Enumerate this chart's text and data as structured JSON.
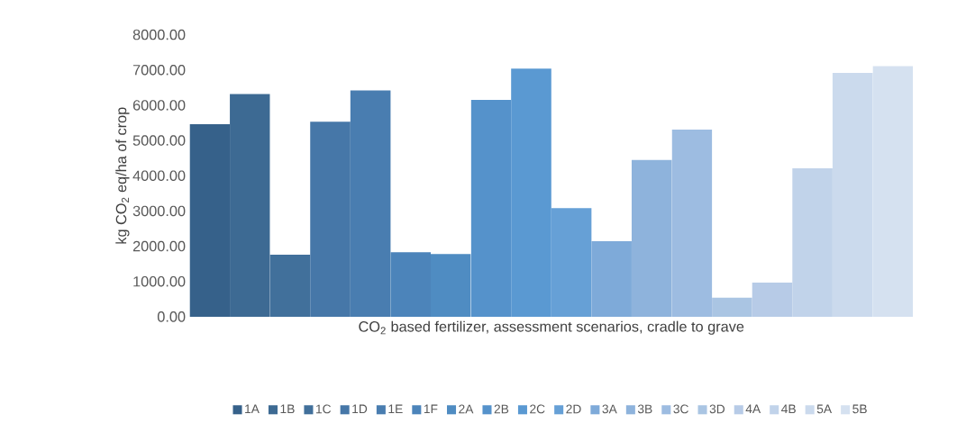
{
  "chart_data": {
    "type": "bar",
    "xlabel": "CO$_{2}$ based fertilizer, assessment scenarios, cradle to grave",
    "ylabel": "kg CO$_{2}$ eq/ha of crop",
    "categories": [
      null
    ],
    "series": [
      {
        "name": "1A",
        "color": "#36618a",
        "values": [
          5460
        ]
      },
      {
        "name": "1B",
        "color": "#3d6a93",
        "values": [
          6320
        ]
      },
      {
        "name": "1C",
        "color": "#41709b",
        "values": [
          1760
        ]
      },
      {
        "name": "1D",
        "color": "#4677a8",
        "values": [
          5530
        ]
      },
      {
        "name": "1E",
        "color": "#497db0",
        "values": [
          6420
        ]
      },
      {
        "name": "1F",
        "color": "#4c84ba",
        "values": [
          1830
        ]
      },
      {
        "name": "2A",
        "color": "#4f8cc2",
        "values": [
          1780
        ]
      },
      {
        "name": "2B",
        "color": "#5592cb",
        "values": [
          6150
        ]
      },
      {
        "name": "2C",
        "color": "#5a99d2",
        "values": [
          7040
        ]
      },
      {
        "name": "2D",
        "color": "#66a0d6",
        "values": [
          3080
        ]
      },
      {
        "name": "3A",
        "color": "#7eaad9",
        "values": [
          2140
        ]
      },
      {
        "name": "3B",
        "color": "#8eb3dc",
        "values": [
          4450
        ]
      },
      {
        "name": "3C",
        "color": "#9dbce1",
        "values": [
          5310
        ]
      },
      {
        "name": "3D",
        "color": "#aac5e3",
        "values": [
          540
        ]
      },
      {
        "name": "4A",
        "color": "#b7cbe7",
        "values": [
          970
        ]
      },
      {
        "name": "4B",
        "color": "#c1d3ea",
        "values": [
          4210
        ]
      },
      {
        "name": "5A",
        "color": "#cbdaed",
        "values": [
          6920
        ]
      },
      {
        "name": "5B",
        "color": "#d5e1f0",
        "values": [
          7110
        ]
      }
    ],
    "ylim": [
      0,
      8000
    ],
    "yticks": [
      {
        "value": 0,
        "label": "0.00"
      },
      {
        "value": 1000,
        "label": "1000.00"
      },
      {
        "value": 2000,
        "label": "2000.00"
      },
      {
        "value": 3000,
        "label": "3000.00"
      },
      {
        "value": 4000,
        "label": "4000.00"
      },
      {
        "value": 5000,
        "label": "5000.00"
      },
      {
        "value": 6000,
        "label": "6000.00"
      },
      {
        "value": 7000,
        "label": "7000.00"
      },
      {
        "value": 8000,
        "label": "8000.00"
      }
    ],
    "grid": false,
    "legend": "bottom"
  }
}
